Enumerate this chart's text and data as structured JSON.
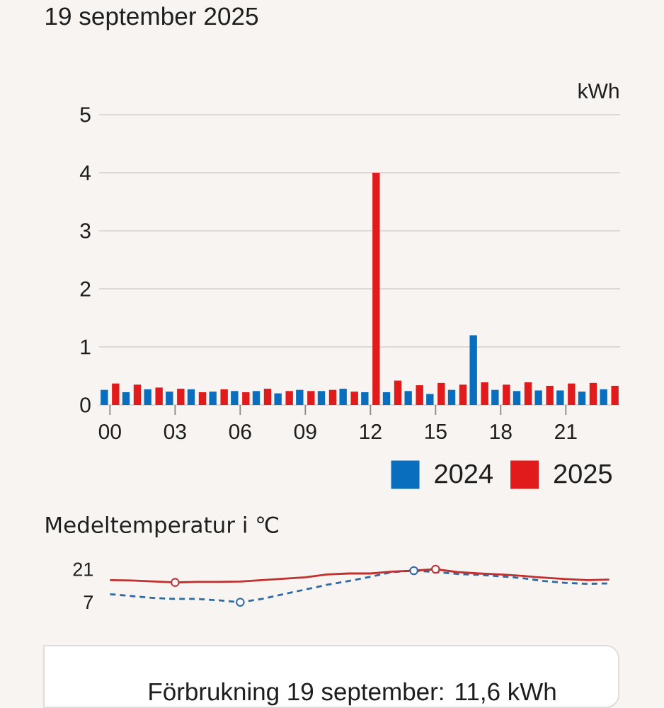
{
  "chart_data": [
    {
      "type": "bar",
      "title": "19 september 2025",
      "ylabel": "kWh",
      "categories": [
        "00",
        null,
        null,
        "03",
        null,
        null,
        "06",
        null,
        null,
        "09",
        null,
        null,
        "12",
        null,
        null,
        "15",
        null,
        null,
        "18",
        null,
        null,
        "21",
        null,
        null
      ],
      "series": [
        {
          "name": "2024",
          "color": "#0a6ebe",
          "values": [
            0.26,
            0.22,
            0.27,
            0.23,
            0.27,
            0.23,
            0.24,
            0.24,
            0.2,
            0.26,
            0.24,
            0.28,
            0.22,
            0.22,
            0.24,
            0.19,
            0.26,
            1.2,
            0.26,
            0.24,
            0.25,
            0.25,
            0.23,
            0.27
          ]
        },
        {
          "name": "2025",
          "color": "#e11b1b",
          "values": [
            0.37,
            0.35,
            0.3,
            0.28,
            0.22,
            0.27,
            0.22,
            0.28,
            0.24,
            0.24,
            0.26,
            0.23,
            4.0,
            0.42,
            0.34,
            0.38,
            0.35,
            0.39,
            0.35,
            0.39,
            0.33,
            0.37,
            0.38,
            0.33
          ]
        }
      ],
      "ylim": [
        0,
        5
      ],
      "yticks": [
        0,
        1,
        2,
        3,
        4,
        5
      ],
      "grid": "y",
      "legend": "bottom right"
    },
    {
      "type": "line",
      "title": "Medeltemperatur i ℃",
      "categories": [
        null,
        null,
        null,
        null,
        null,
        null,
        null,
        null,
        null,
        null,
        null,
        null,
        null,
        null,
        null,
        null,
        null,
        null,
        null,
        null,
        null,
        null,
        null,
        null
      ],
      "series": [
        {
          "color": "#2f6aa3",
          "line_style": "dashed",
          "values": [
            10.4,
            9.6,
            8.8,
            8.4,
            8.4,
            7.8,
            7.0,
            8.4,
            10.4,
            12.4,
            14.4,
            16.0,
            17.8,
            19.8,
            20.4,
            19.8,
            19.0,
            18.6,
            18.0,
            17.2,
            16.0,
            15.2,
            14.8,
            15.0
          ]
        },
        {
          "color": "#c0302e",
          "line_style": "solid",
          "values": [
            16.4,
            16.2,
            15.8,
            15.4,
            15.6,
            15.6,
            15.8,
            16.4,
            17.0,
            17.6,
            18.8,
            19.2,
            19.2,
            20.0,
            20.4,
            21.0,
            19.8,
            19.2,
            18.8,
            18.2,
            17.4,
            16.8,
            16.4,
            16.6
          ]
        },
        {
          "type": "scatter",
          "color": "#2f6aa3",
          "marker": "circle",
          "values": [
            null,
            null,
            null,
            null,
            null,
            null,
            7.0,
            null,
            null,
            null,
            null,
            null,
            null,
            null,
            20.4,
            null,
            null,
            null,
            null,
            null,
            null,
            null,
            null,
            null
          ]
        },
        {
          "type": "scatter",
          "color": "#c0302e",
          "marker": "circle",
          "values": [
            null,
            null,
            null,
            15.4,
            null,
            null,
            null,
            null,
            null,
            null,
            null,
            null,
            null,
            null,
            null,
            21.0,
            null,
            null,
            null,
            null,
            null,
            null,
            null,
            null
          ]
        }
      ],
      "ylim": [
        7,
        21
      ],
      "yticks": [
        7,
        21
      ],
      "tick_labels": "y"
    },
    {
      "type": "other",
      "title": "Förbrukning 19 september: 11,6 kWh"
    }
  ]
}
